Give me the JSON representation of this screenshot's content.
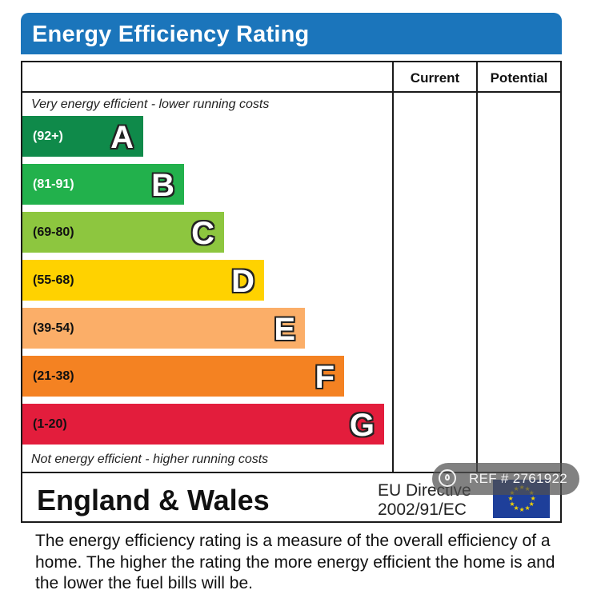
{
  "header": {
    "title": "Energy Efficiency Rating"
  },
  "columns": {
    "current": "Current",
    "potential": "Potential"
  },
  "captions": {
    "top": "Very energy efficient - lower running costs",
    "bottom": "Not energy efficient - higher running costs"
  },
  "bands": [
    {
      "range": "(92+)",
      "letter": "A",
      "color": "#0f8a4a",
      "range_color": "#ffffff"
    },
    {
      "range": "(81-91)",
      "letter": "B",
      "color": "#22b14c",
      "range_color": "#ffffff"
    },
    {
      "range": "(69-80)",
      "letter": "C",
      "color": "#8dc63f",
      "range_color": "#111111"
    },
    {
      "range": "(55-68)",
      "letter": "D",
      "color": "#ffd200",
      "range_color": "#111111"
    },
    {
      "range": "(39-54)",
      "letter": "E",
      "color": "#fbae68",
      "range_color": "#111111"
    },
    {
      "range": "(21-38)",
      "letter": "F",
      "color": "#f48222",
      "range_color": "#111111"
    },
    {
      "range": "(1-20)",
      "letter": "G",
      "color": "#e31d3c",
      "range_color": "#111111"
    }
  ],
  "footer": {
    "region": "England & Wales",
    "directive_line1": "EU Directive",
    "directive_line2": "2002/91/EC"
  },
  "ref_badge": {
    "text": "REF # 2761922",
    "icon": "home-pin-icon"
  },
  "description": "The energy efficiency rating is a measure of the overall efficiency of a home.  The higher the rating the more energy efficient the home is and the lower the fuel bills will be."
}
